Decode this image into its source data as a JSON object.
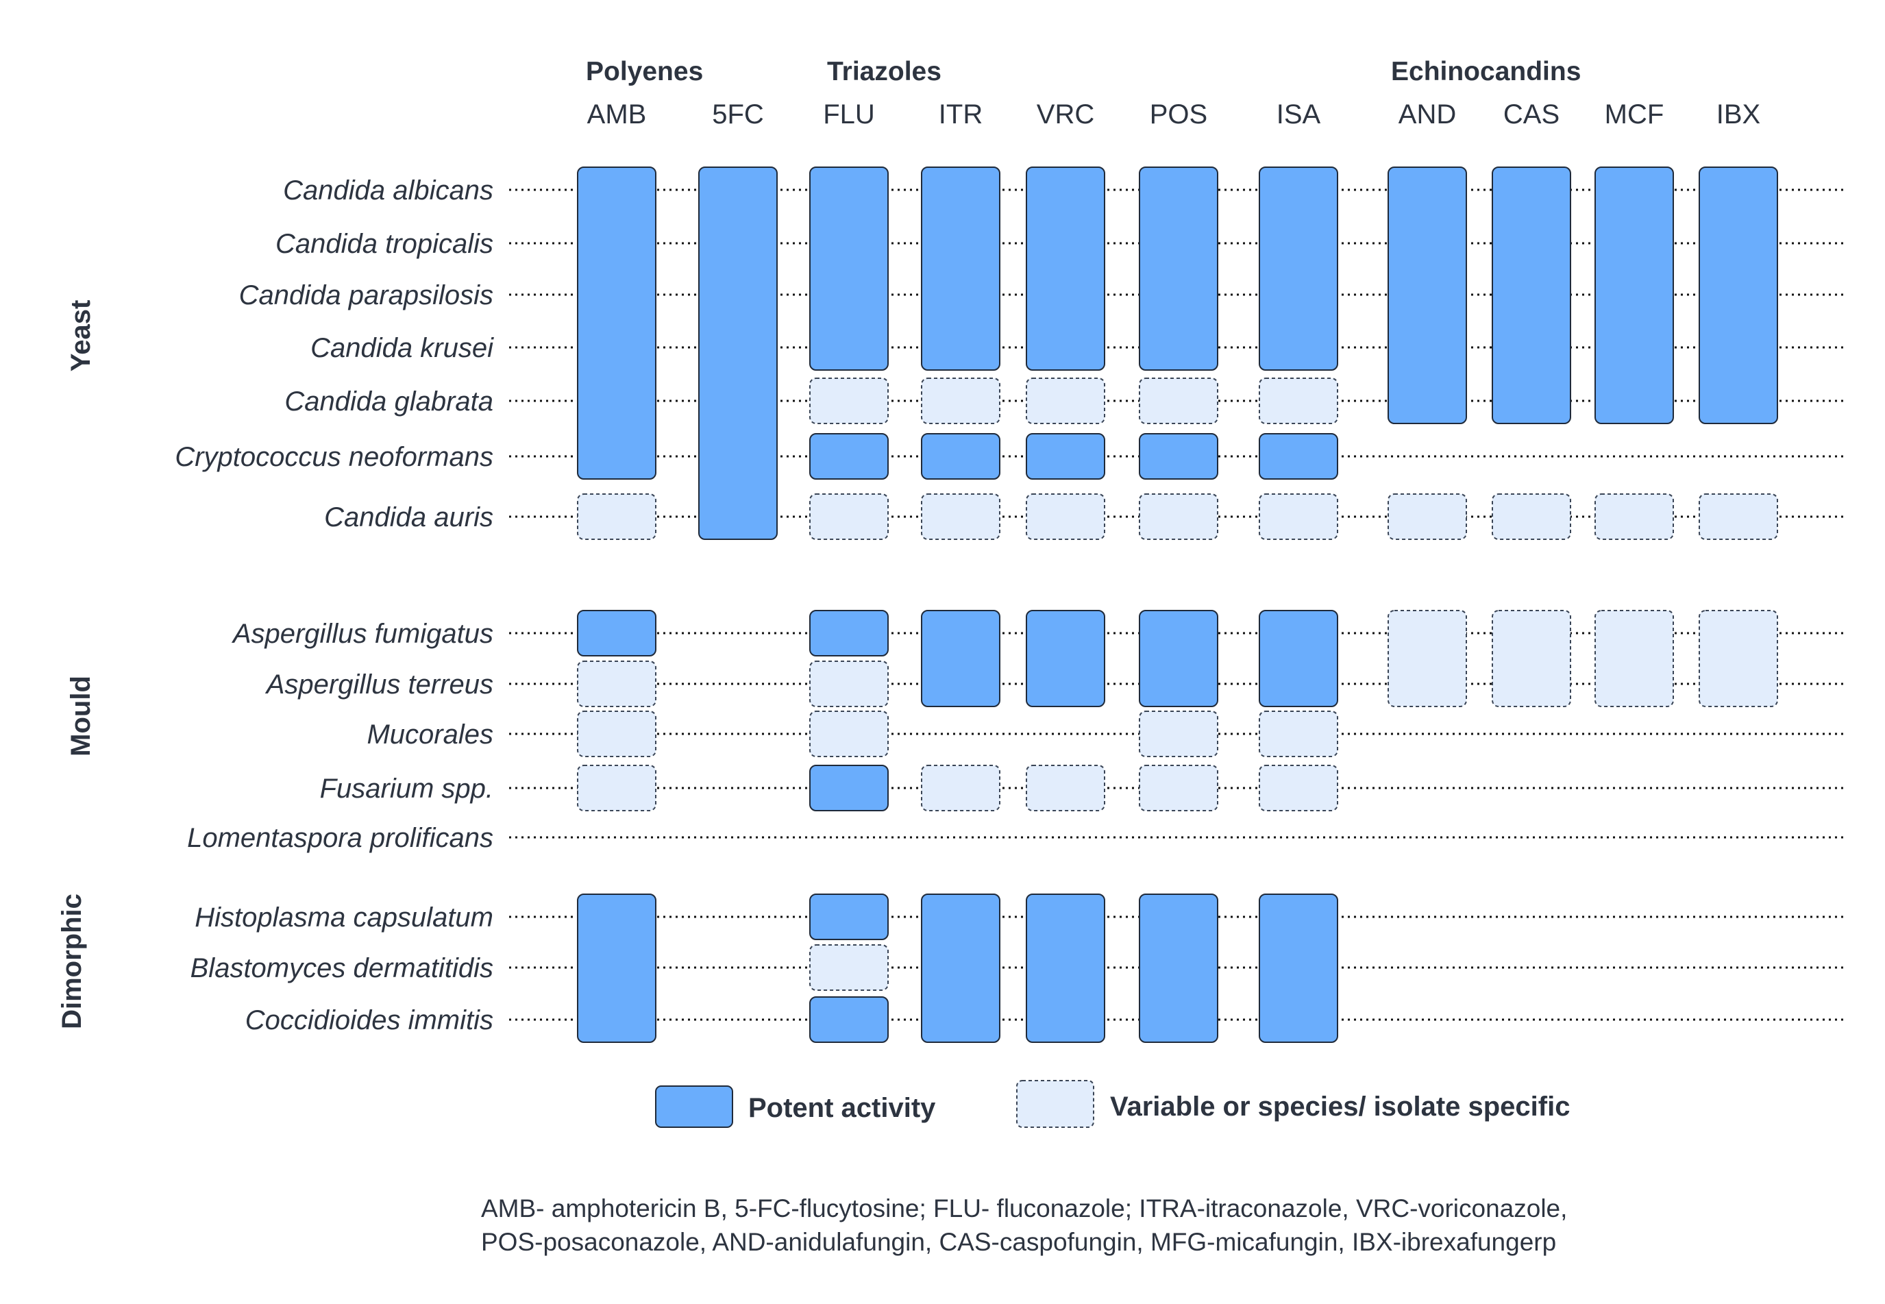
{
  "drug_classes": [
    {
      "id": "polyenes",
      "label": "Polyenes"
    },
    {
      "id": "triazoles",
      "label": "Triazoles"
    },
    {
      "id": "echinocandins",
      "label": "Echinocandins"
    }
  ],
  "drugs": [
    "AMB",
    "5FC",
    "FLU",
    "ITR",
    "VRC",
    "POS",
    "ISA",
    "AND",
    "CAS",
    "MCF",
    "IBX"
  ],
  "groups": [
    {
      "id": "yeast",
      "label": "Yeast"
    },
    {
      "id": "mould",
      "label": "Mould"
    },
    {
      "id": "dimorphic",
      "label": "Dimorphic"
    }
  ],
  "species": [
    {
      "name": "Candida albicans",
      "group": "yeast"
    },
    {
      "name": "Candida tropicalis",
      "group": "yeast"
    },
    {
      "name": "Candida parapsilosis",
      "group": "yeast"
    },
    {
      "name": "Candida krusei",
      "group": "yeast"
    },
    {
      "name": "Candida glabrata",
      "group": "yeast"
    },
    {
      "name": "Cryptococcus neoformans",
      "group": "yeast"
    },
    {
      "name": "Candida auris",
      "group": "yeast"
    },
    {
      "name": "Aspergillus fumigatus",
      "group": "mould"
    },
    {
      "name": "Aspergillus terreus",
      "group": "mould"
    },
    {
      "name": "Mucorales",
      "group": "mould"
    },
    {
      "name": "Fusarium spp.",
      "group": "mould"
    },
    {
      "name": "Lomentaspora prolificans",
      "group": "mould"
    },
    {
      "name": "Histoplasma capsulatum",
      "group": "dimorphic"
    },
    {
      "name": "Blastomyces dermatitidis",
      "group": "dimorphic"
    },
    {
      "name": "Coccidioides immitis",
      "group": "dimorphic"
    }
  ],
  "activity_blocks": [
    {
      "drug": "AMB",
      "first": "Candida albicans",
      "last": "Cryptococcus neoformans",
      "level": "potent"
    },
    {
      "drug": "AMB",
      "first": "Candida auris",
      "last": "Candida auris",
      "level": "variable"
    },
    {
      "drug": "5FC",
      "first": "Candida albicans",
      "last": "Candida auris",
      "level": "potent"
    },
    {
      "drug": "FLU",
      "first": "Candida albicans",
      "last": "Candida krusei",
      "level": "potent"
    },
    {
      "drug": "FLU",
      "first": "Candida glabrata",
      "last": "Candida glabrata",
      "level": "variable"
    },
    {
      "drug": "FLU",
      "first": "Cryptococcus neoformans",
      "last": "Cryptococcus neoformans",
      "level": "potent"
    },
    {
      "drug": "FLU",
      "first": "Candida auris",
      "last": "Candida auris",
      "level": "variable"
    },
    {
      "drug": "ITR",
      "first": "Candida albicans",
      "last": "Candida krusei",
      "level": "potent"
    },
    {
      "drug": "ITR",
      "first": "Candida glabrata",
      "last": "Candida glabrata",
      "level": "variable"
    },
    {
      "drug": "ITR",
      "first": "Cryptococcus neoformans",
      "last": "Cryptococcus neoformans",
      "level": "potent"
    },
    {
      "drug": "ITR",
      "first": "Candida auris",
      "last": "Candida auris",
      "level": "variable"
    },
    {
      "drug": "VRC",
      "first": "Candida albicans",
      "last": "Candida krusei",
      "level": "potent"
    },
    {
      "drug": "VRC",
      "first": "Candida glabrata",
      "last": "Candida glabrata",
      "level": "variable"
    },
    {
      "drug": "VRC",
      "first": "Cryptococcus neoformans",
      "last": "Cryptococcus neoformans",
      "level": "potent"
    },
    {
      "drug": "VRC",
      "first": "Candida auris",
      "last": "Candida auris",
      "level": "variable"
    },
    {
      "drug": "POS",
      "first": "Candida albicans",
      "last": "Candida krusei",
      "level": "potent"
    },
    {
      "drug": "POS",
      "first": "Candida glabrata",
      "last": "Candida glabrata",
      "level": "variable"
    },
    {
      "drug": "POS",
      "first": "Cryptococcus neoformans",
      "last": "Cryptococcus neoformans",
      "level": "potent"
    },
    {
      "drug": "POS",
      "first": "Candida auris",
      "last": "Candida auris",
      "level": "variable"
    },
    {
      "drug": "ISA",
      "first": "Candida albicans",
      "last": "Candida krusei",
      "level": "potent"
    },
    {
      "drug": "ISA",
      "first": "Candida glabrata",
      "last": "Candida glabrata",
      "level": "variable"
    },
    {
      "drug": "ISA",
      "first": "Cryptococcus neoformans",
      "last": "Cryptococcus neoformans",
      "level": "potent"
    },
    {
      "drug": "ISA",
      "first": "Candida auris",
      "last": "Candida auris",
      "level": "variable"
    },
    {
      "drug": "AND",
      "first": "Candida albicans",
      "last": "Candida glabrata",
      "level": "potent"
    },
    {
      "drug": "AND",
      "first": "Candida auris",
      "last": "Candida auris",
      "level": "variable"
    },
    {
      "drug": "CAS",
      "first": "Candida albicans",
      "last": "Candida glabrata",
      "level": "potent"
    },
    {
      "drug": "CAS",
      "first": "Candida auris",
      "last": "Candida auris",
      "level": "variable"
    },
    {
      "drug": "MCF",
      "first": "Candida albicans",
      "last": "Candida glabrata",
      "level": "potent"
    },
    {
      "drug": "MCF",
      "first": "Candida auris",
      "last": "Candida auris",
      "level": "variable"
    },
    {
      "drug": "IBX",
      "first": "Candida albicans",
      "last": "Candida glabrata",
      "level": "potent"
    },
    {
      "drug": "IBX",
      "first": "Candida auris",
      "last": "Candida auris",
      "level": "variable"
    },
    {
      "drug": "AMB",
      "first": "Aspergillus fumigatus",
      "last": "Aspergillus fumigatus",
      "level": "potent"
    },
    {
      "drug": "AMB",
      "first": "Aspergillus terreus",
      "last": "Aspergillus terreus",
      "level": "variable"
    },
    {
      "drug": "AMB",
      "first": "Mucorales",
      "last": "Mucorales",
      "level": "variable"
    },
    {
      "drug": "AMB",
      "first": "Fusarium spp.",
      "last": "Fusarium spp.",
      "level": "variable"
    },
    {
      "drug": "FLU",
      "first": "Aspergillus fumigatus",
      "last": "Aspergillus fumigatus",
      "level": "potent"
    },
    {
      "drug": "FLU",
      "first": "Aspergillus terreus",
      "last": "Aspergillus terreus",
      "level": "variable"
    },
    {
      "drug": "FLU",
      "first": "Mucorales",
      "last": "Mucorales",
      "level": "variable"
    },
    {
      "drug": "FLU",
      "first": "Fusarium spp.",
      "last": "Fusarium spp.",
      "level": "potent"
    },
    {
      "drug": "ITR",
      "first": "Aspergillus fumigatus",
      "last": "Aspergillus terreus",
      "level": "potent"
    },
    {
      "drug": "ITR",
      "first": "Fusarium spp.",
      "last": "Fusarium spp.",
      "level": "variable"
    },
    {
      "drug": "VRC",
      "first": "Aspergillus fumigatus",
      "last": "Aspergillus terreus",
      "level": "potent"
    },
    {
      "drug": "VRC",
      "first": "Fusarium spp.",
      "last": "Fusarium spp.",
      "level": "variable"
    },
    {
      "drug": "POS",
      "first": "Aspergillus fumigatus",
      "last": "Aspergillus terreus",
      "level": "potent"
    },
    {
      "drug": "POS",
      "first": "Mucorales",
      "last": "Mucorales",
      "level": "variable"
    },
    {
      "drug": "POS",
      "first": "Fusarium spp.",
      "last": "Fusarium spp.",
      "level": "variable"
    },
    {
      "drug": "ISA",
      "first": "Aspergillus fumigatus",
      "last": "Aspergillus terreus",
      "level": "potent"
    },
    {
      "drug": "ISA",
      "first": "Mucorales",
      "last": "Mucorales",
      "level": "variable"
    },
    {
      "drug": "ISA",
      "first": "Fusarium spp.",
      "last": "Fusarium spp.",
      "level": "variable"
    },
    {
      "drug": "AND",
      "first": "Aspergillus fumigatus",
      "last": "Aspergillus terreus",
      "level": "variable"
    },
    {
      "drug": "CAS",
      "first": "Aspergillus fumigatus",
      "last": "Aspergillus terreus",
      "level": "variable"
    },
    {
      "drug": "MCF",
      "first": "Aspergillus fumigatus",
      "last": "Aspergillus terreus",
      "level": "variable"
    },
    {
      "drug": "IBX",
      "first": "Aspergillus fumigatus",
      "last": "Aspergillus terreus",
      "level": "variable"
    },
    {
      "drug": "AMB",
      "first": "Histoplasma capsulatum",
      "last": "Coccidioides immitis",
      "level": "potent"
    },
    {
      "drug": "FLU",
      "first": "Histoplasma capsulatum",
      "last": "Histoplasma capsulatum",
      "level": "potent"
    },
    {
      "drug": "FLU",
      "first": "Blastomyces dermatitidis",
      "last": "Blastomyces dermatitidis",
      "level": "variable"
    },
    {
      "drug": "FLU",
      "first": "Coccidioides immitis",
      "last": "Coccidioides immitis",
      "level": "potent"
    },
    {
      "drug": "ITR",
      "first": "Histoplasma capsulatum",
      "last": "Coccidioides immitis",
      "level": "potent"
    },
    {
      "drug": "VRC",
      "first": "Histoplasma capsulatum",
      "last": "Coccidioides immitis",
      "level": "potent"
    },
    {
      "drug": "POS",
      "first": "Histoplasma capsulatum",
      "last": "Coccidioides immitis",
      "level": "potent"
    },
    {
      "drug": "ISA",
      "first": "Histoplasma capsulatum",
      "last": "Coccidioides immitis",
      "level": "potent"
    }
  ],
  "legend": {
    "potent": "Potent activity",
    "variable": "Variable or species/ isolate specific"
  },
  "colors": {
    "potent": "#6aadfc",
    "variable": "#e2edfc"
  },
  "footnote": [
    "AMB- amphotericin B, 5-FC-flucytosine; FLU- fluconazole; ITRA-itraconazole, VRC-voriconazole,",
    "POS-posaconazole, AND-anidulafungin, CAS-caspofungin, MFG-micafungin, IBX-ibrexafungerp"
  ]
}
